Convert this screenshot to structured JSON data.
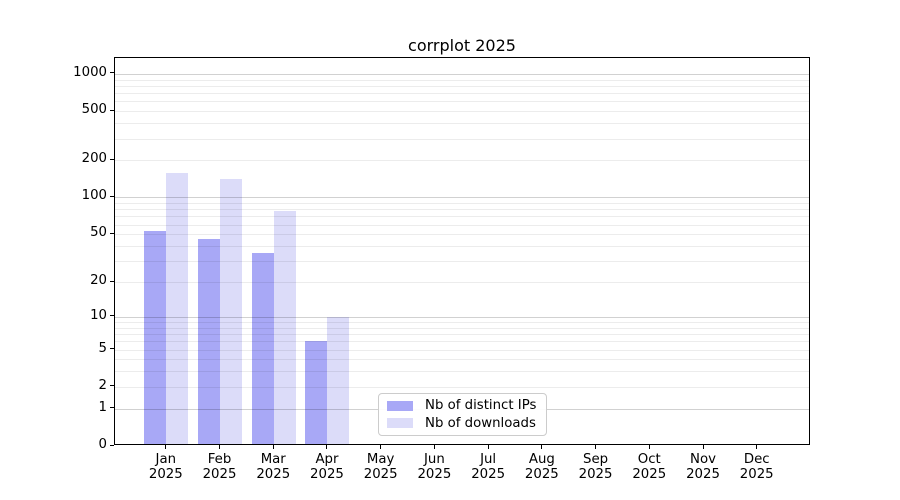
{
  "title": "corrplot 2025",
  "chart_data": {
    "type": "bar",
    "title": "corrplot 2025",
    "categories": [
      "Jan 2025",
      "Feb 2025",
      "Mar 2025",
      "Apr 2025",
      "May 2025",
      "Jun 2025",
      "Jul 2025",
      "Aug 2025",
      "Sep 2025",
      "Oct 2025",
      "Nov 2025",
      "Dec 2025"
    ],
    "series": [
      {
        "name": "Nb of distinct IPs",
        "color": "#a8a8f6",
        "values": [
          53,
          46,
          35,
          6,
          null,
          null,
          null,
          null,
          null,
          null,
          null,
          null
        ]
      },
      {
        "name": "Nb of downloads",
        "color": "#dcdcf9",
        "values": [
          158,
          140,
          78,
          10,
          null,
          null,
          null,
          null,
          null,
          null,
          null,
          null
        ]
      }
    ],
    "xlabel": "",
    "ylabel": "",
    "yscale": "log10(1+x)",
    "yticks": [
      0,
      1,
      2,
      5,
      10,
      20,
      50,
      100,
      200,
      500,
      1000
    ],
    "ylim": [
      0,
      1350
    ],
    "grid": "horizontal major+minor",
    "legend_position": "lower center"
  }
}
